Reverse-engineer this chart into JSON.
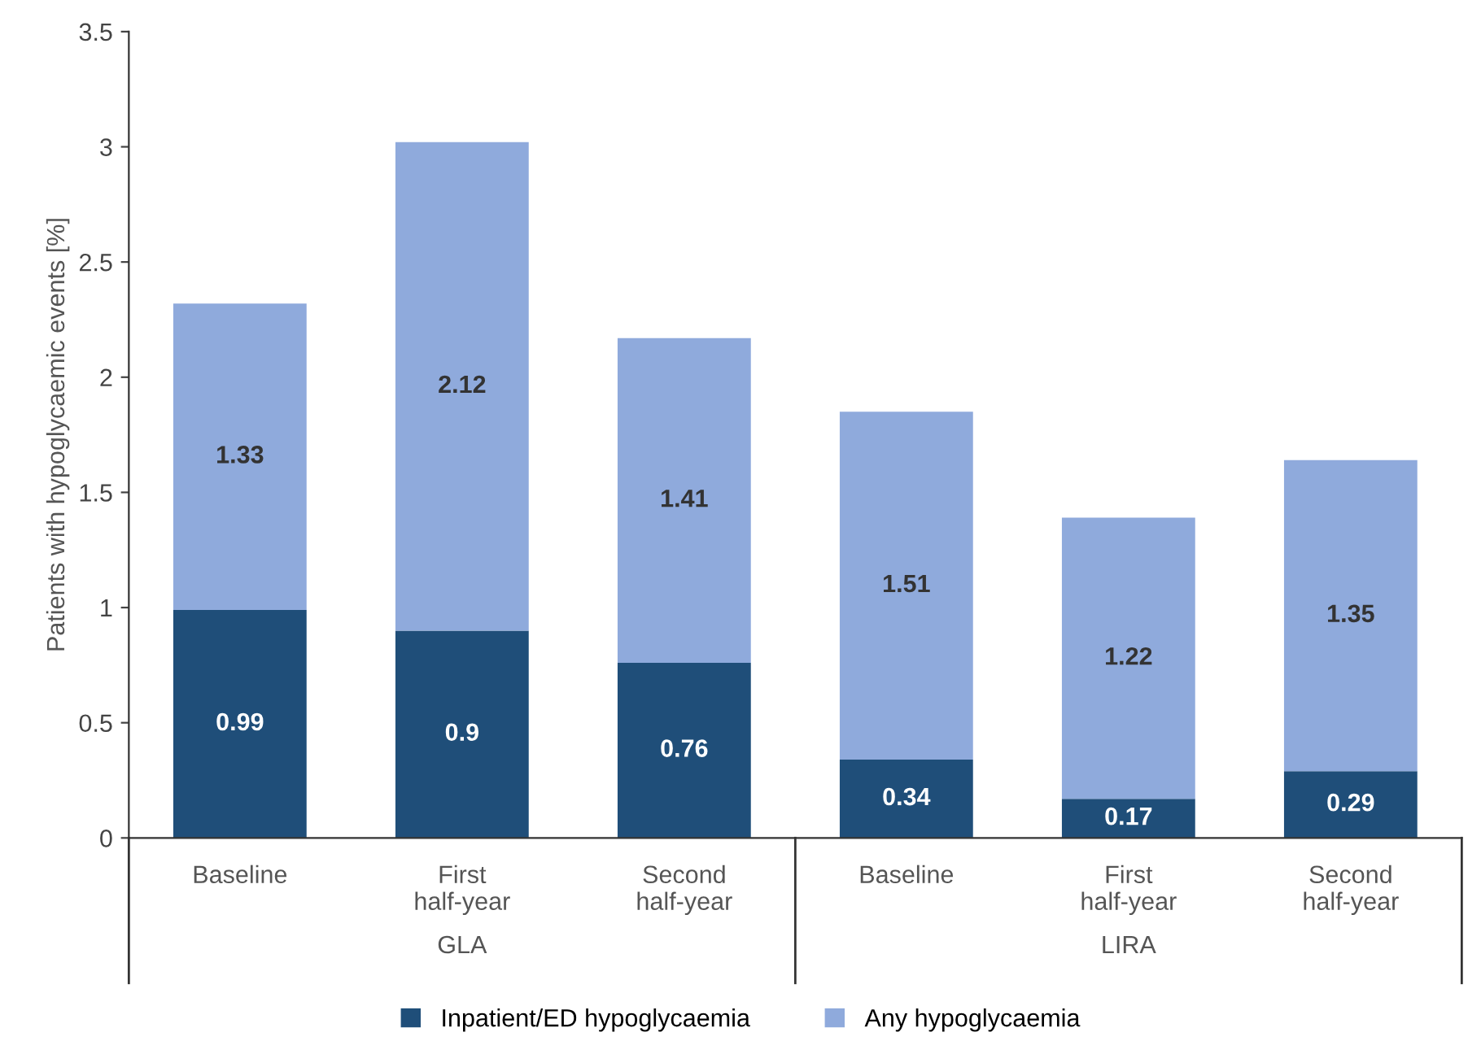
{
  "chart_data": {
    "type": "bar",
    "stacked": true,
    "ylabel": "Patients with hypoglycaemic events [%]",
    "categories": [
      "Baseline",
      "First\nhalf-year",
      "Second\nhalf-year",
      "Baseline",
      "First\nhalf-year",
      "Second\nhalf-year"
    ],
    "series": [
      {
        "name": "Inpatient/ED hypoglycaemia",
        "color": "#1f4e79",
        "values": [
          0.99,
          0.9,
          0.76,
          0.34,
          0.17,
          0.29
        ]
      },
      {
        "name": "Any hypoglycaemia",
        "color": "#8faadc",
        "values": [
          1.33,
          2.12,
          1.41,
          1.51,
          1.22,
          1.35
        ]
      }
    ],
    "ylim": [
      0,
      3.5
    ],
    "yticks": [
      0,
      0.5,
      1,
      1.5,
      2,
      2.5,
      3,
      3.5
    ],
    "data_labels": true,
    "grid": false,
    "legend": "bottom",
    "annotations": [
      "GLA",
      "LIRA"
    ]
  }
}
